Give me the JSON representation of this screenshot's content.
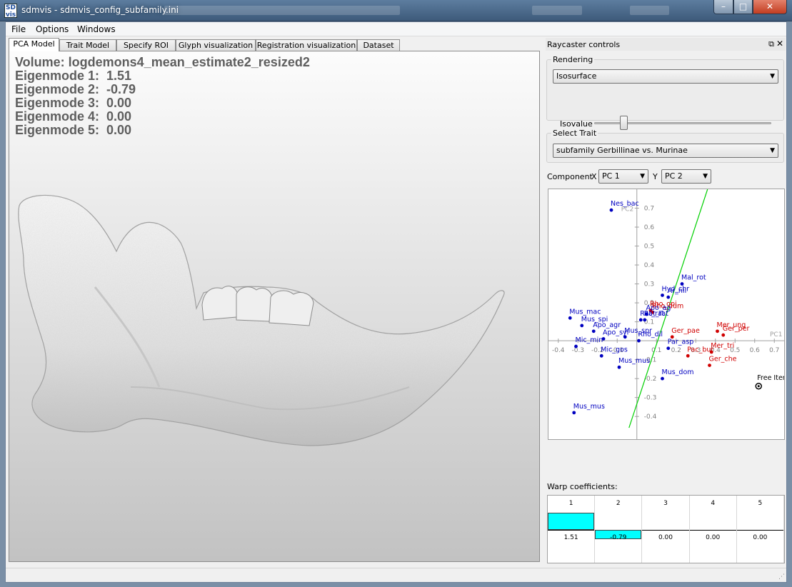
{
  "window": {
    "icon_text": "SD\nvis",
    "title": "sdmvis - sdmvis_config_subfamily.ini",
    "minimize_glyph": "–",
    "maximize_glyph": "□",
    "close_glyph": "✕"
  },
  "menu": [
    "File",
    "Options",
    "Windows"
  ],
  "tabs": [
    "PCA Model",
    "Trait Model",
    "Specify ROI",
    "Glyph visualization",
    "Registration visualization",
    "Dataset"
  ],
  "active_tab": 0,
  "overlay": {
    "volume": "Volume: logdemons4_mean_estimate2_resized2",
    "eigenmodes": [
      "Eigenmode 1:  1.51",
      "Eigenmode 2:  -0.79",
      "Eigenmode 3:  0.00",
      "Eigenmode 4:  0.00",
      "Eigenmode 5:  0.00"
    ]
  },
  "dock": {
    "title": "Raycaster controls",
    "float_glyph": "⧉",
    "close_glyph": "✕",
    "rendering": {
      "label": "Rendering",
      "mode": "Isosurface",
      "isovalue_label": "Isovalue",
      "isovalue_level": 0.15
    },
    "trait": {
      "label": "Select Trait",
      "value": "subfamily Gerbillinae vs. Murinae"
    },
    "component": {
      "label": "Component",
      "x_label": "X",
      "x_value": "PC 1",
      "y_label": "Y",
      "y_value": "PC 2"
    },
    "warp_label": "Warp coefficients:"
  },
  "chart_data": {
    "type": "scatter",
    "xlabel": "PC1",
    "ylabel": "PC2",
    "xlim": [
      -0.45,
      0.75
    ],
    "ylim": [
      -0.52,
      0.8
    ],
    "xticks": [
      -0.4,
      -0.3,
      -0.2,
      -0.1,
      0.1,
      0.2,
      0.3,
      0.4,
      0.5,
      0.6,
      0.7
    ],
    "xtick_labels": [
      "-0.4",
      "-0.3",
      "-0.2",
      "-0.1",
      "0.1",
      "0.2",
      "0.3",
      "0.4",
      "0.5",
      "0.6",
      "0.7"
    ],
    "yticks": [
      0.7,
      0.6,
      0.5,
      0.4,
      0.3,
      0.2,
      0.1,
      -0.1,
      -0.2,
      -0.3,
      -0.4
    ],
    "ytick_labels": [
      "0.7",
      "0.6",
      "0.5",
      "0.4",
      "0.3",
      "0.2",
      "0.1",
      "-0.1",
      "-0.2",
      "-0.3",
      "-0.4"
    ],
    "separator_line": [
      [
        -0.04,
        -0.46
      ],
      [
        0.36,
        0.8
      ]
    ],
    "colors": {
      "murinae": "#0000c0",
      "gerbillinae": "#d00000",
      "line": "#00d000",
      "axis": "#a0a0a0"
    },
    "points": [
      {
        "label": "Nes_bac",
        "x": -0.13,
        "y": 0.69,
        "group": "murinae"
      },
      {
        "label": "Mal_rot",
        "x": 0.23,
        "y": 0.3,
        "group": "murinae"
      },
      {
        "label": "Hyd_chr",
        "x": 0.13,
        "y": 0.24,
        "group": "murinae"
      },
      {
        "label": "Ar_nil",
        "x": 0.16,
        "y": 0.23,
        "group": "murinae"
      },
      {
        "label": "Rho_opi",
        "x": 0.07,
        "y": 0.16,
        "group": "gerbillinae"
      },
      {
        "label": "Rho_dum",
        "x": 0.08,
        "y": 0.15,
        "group": "gerbillinae"
      },
      {
        "label": "Apo_ag",
        "x": 0.05,
        "y": 0.14,
        "group": "murinae"
      },
      {
        "label": "Mus_mac",
        "x": -0.34,
        "y": 0.12,
        "group": "murinae"
      },
      {
        "label": "Rat_rat",
        "x": 0.02,
        "y": 0.11,
        "group": "murinae"
      },
      {
        "label": "Rat_rat",
        "x": 0.04,
        "y": 0.11,
        "group": "murinae"
      },
      {
        "label": "Mus_spi",
        "x": -0.28,
        "y": 0.08,
        "group": "murinae"
      },
      {
        "label": "Apo_agr",
        "x": -0.22,
        "y": 0.05,
        "group": "murinae"
      },
      {
        "label": "Mus_spr",
        "x": -0.06,
        "y": 0.02,
        "group": "murinae"
      },
      {
        "label": "Mer_ung",
        "x": 0.41,
        "y": 0.05,
        "group": "gerbillinae"
      },
      {
        "label": "Ger_per",
        "x": 0.44,
        "y": 0.03,
        "group": "gerbillinae"
      },
      {
        "label": "Ger_pae",
        "x": 0.18,
        "y": 0.02,
        "group": "gerbillinae"
      },
      {
        "label": "Apo_syl",
        "x": -0.17,
        "y": 0.01,
        "group": "murinae"
      },
      {
        "label": "Rho_dil",
        "x": 0.01,
        "y": 0.0,
        "group": "murinae"
      },
      {
        "label": "Mic_min",
        "x": -0.31,
        "y": -0.03,
        "group": "murinae"
      },
      {
        "label": "Par_asp",
        "x": 0.16,
        "y": -0.04,
        "group": "murinae"
      },
      {
        "label": "Mic_gos",
        "x": -0.18,
        "y": -0.08,
        "group": "murinae"
      },
      {
        "label": "Pac_bur",
        "x": 0.26,
        "y": -0.08,
        "group": "gerbillinae"
      },
      {
        "label": "Mer_tri",
        "x": 0.38,
        "y": -0.06,
        "group": "gerbillinae"
      },
      {
        "label": "Mus_mus",
        "x": -0.09,
        "y": -0.14,
        "group": "murinae"
      },
      {
        "label": "Ger_che",
        "x": 0.37,
        "y": -0.13,
        "group": "gerbillinae"
      },
      {
        "label": "Mus_dom",
        "x": 0.13,
        "y": -0.2,
        "group": "murinae"
      },
      {
        "label": "Mus_mus",
        "x": -0.32,
        "y": -0.38,
        "group": "murinae"
      }
    ],
    "free_item": {
      "label": "Free Item",
      "x": 0.62,
      "y": -0.24
    }
  },
  "warp": {
    "columns": [
      "1",
      "2",
      "3",
      "4",
      "5"
    ],
    "values": [
      1.51,
      -0.79,
      0.0,
      0.0,
      0.0
    ],
    "value_labels": [
      "1.51",
      "-0.79",
      "0.00",
      "0.00",
      "0.00"
    ],
    "bar_color": "#00ffff"
  },
  "size_grip_glyph": "⋰"
}
